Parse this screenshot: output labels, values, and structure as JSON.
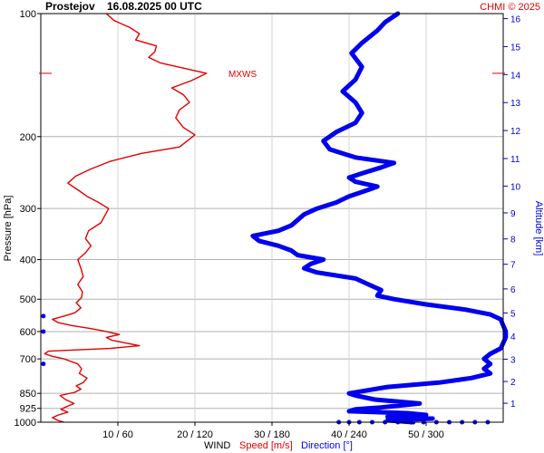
{
  "chart_data": {
    "type": "line",
    "station": "Prostejov",
    "datetime": "16.08.2025 00 UTC",
    "credit": "CHMI © 2025",
    "ylabel_left": "Pressure [hPa]",
    "ylabel_right": "Altitude [km]",
    "pressure_ticks": [
      "100",
      "200",
      "300",
      "400",
      "500",
      "600",
      "700",
      "850",
      "925",
      "1000"
    ],
    "altitude_ticks": [
      "1",
      "2",
      "3",
      "4",
      "5",
      "6",
      "7",
      "8",
      "9",
      "10",
      "11",
      "12",
      "13",
      "14",
      "15",
      "16"
    ],
    "x_ticks": [
      "10 / 60",
      "20 / 120",
      "30 / 180",
      "40 / 240",
      "50 / 300"
    ],
    "x_axis": {
      "word": "WIND",
      "speed_label": "Speed [m/s]",
      "direction_label": "Direction [°]",
      "speed_range": [
        0,
        60
      ],
      "direction_range": [
        0,
        360
      ]
    },
    "mxws_label": "MXWS",
    "mxws_pressure": 140,
    "colors": {
      "speed": "#e00000",
      "direction": "#0000ee",
      "credit": "#e00000",
      "axis_right": "#0000cc"
    },
    "series": [
      {
        "name": "Speed [m/s]",
        "color": "#e00000",
        "points": [
          [
            1000,
            3.0
          ],
          [
            990,
            2.2
          ],
          [
            975,
            1.5
          ],
          [
            960,
            2.3
          ],
          [
            945,
            3.5
          ],
          [
            930,
            2.6
          ],
          [
            915,
            3.4
          ],
          [
            900,
            4.3
          ],
          [
            880,
            3.2
          ],
          [
            860,
            2.5
          ],
          [
            845,
            4.4
          ],
          [
            830,
            5.2
          ],
          [
            815,
            4.6
          ],
          [
            800,
            5.5
          ],
          [
            780,
            6.0
          ],
          [
            760,
            5.0
          ],
          [
            740,
            5.3
          ],
          [
            720,
            4.8
          ],
          [
            700,
            3.0
          ],
          [
            690,
            1.5
          ],
          [
            680,
            0.5
          ],
          [
            670,
            1.0
          ],
          [
            660,
            9.0
          ],
          [
            650,
            12.8
          ],
          [
            640,
            11.0
          ],
          [
            630,
            9.2
          ],
          [
            620,
            8.5
          ],
          [
            610,
            10.2
          ],
          [
            600,
            8.5
          ],
          [
            590,
            6.5
          ],
          [
            580,
            4.0
          ],
          [
            570,
            2.2
          ],
          [
            560,
            1.5
          ],
          [
            550,
            3.0
          ],
          [
            540,
            4.4
          ],
          [
            525,
            5.2
          ],
          [
            510,
            4.6
          ],
          [
            495,
            5.3
          ],
          [
            480,
            5.4
          ],
          [
            460,
            4.8
          ],
          [
            440,
            5.5
          ],
          [
            420,
            5.2
          ],
          [
            400,
            4.8
          ],
          [
            385,
            5.8
          ],
          [
            370,
            6.5
          ],
          [
            355,
            5.8
          ],
          [
            340,
            6.2
          ],
          [
            325,
            7.8
          ],
          [
            310,
            8.4
          ],
          [
            300,
            8.8
          ],
          [
            290,
            7.5
          ],
          [
            280,
            6.0
          ],
          [
            270,
            4.8
          ],
          [
            260,
            3.5
          ],
          [
            250,
            4.5
          ],
          [
            240,
            6.5
          ],
          [
            230,
            9.0
          ],
          [
            220,
            13.0
          ],
          [
            212,
            18.0
          ],
          [
            205,
            19.0
          ],
          [
            198,
            20.0
          ],
          [
            190,
            18.5
          ],
          [
            180,
            17.5
          ],
          [
            172,
            18.0
          ],
          [
            165,
            19.3
          ],
          [
            158,
            18.5
          ],
          [
            152,
            17.0
          ],
          [
            146,
            19.5
          ],
          [
            140,
            21.5
          ],
          [
            136,
            18.5
          ],
          [
            132,
            15.5
          ],
          [
            128,
            14.0
          ],
          [
            124,
            14.8
          ],
          [
            120,
            15.0
          ],
          [
            116,
            12.3
          ],
          [
            112,
            12.8
          ],
          [
            108,
            11.5
          ],
          [
            104,
            9.5
          ],
          [
            100,
            8.5
          ]
        ]
      },
      {
        "name": "Direction [°]",
        "color": "#0000ee",
        "points": [
          [
            1000,
            290
          ],
          [
            990,
            270
          ],
          [
            980,
            305
          ],
          [
            970,
            270
          ],
          [
            960,
            300
          ],
          [
            950,
            285
          ],
          [
            940,
            240
          ],
          [
            930,
            245
          ],
          [
            920,
            265
          ],
          [
            910,
            280
          ],
          [
            900,
            295
          ],
          [
            880,
            260
          ],
          [
            860,
            245
          ],
          [
            850,
            240
          ],
          [
            840,
            250
          ],
          [
            820,
            270
          ],
          [
            800,
            310
          ],
          [
            780,
            335
          ],
          [
            760,
            350
          ],
          [
            740,
            345
          ],
          [
            720,
            350
          ],
          [
            700,
            345
          ],
          [
            680,
            350
          ],
          [
            660,
            358
          ],
          [
            640,
            360
          ],
          [
            620,
            362
          ],
          [
            600,
            362
          ],
          [
            580,
            360
          ],
          [
            560,
            358
          ],
          [
            545,
            350
          ],
          [
            530,
            330
          ],
          [
            515,
            300
          ],
          [
            500,
            275
          ],
          [
            490,
            262
          ],
          [
            475,
            265
          ],
          [
            460,
            255
          ],
          [
            445,
            245
          ],
          [
            430,
            215
          ],
          [
            420,
            205
          ],
          [
            410,
            210
          ],
          [
            400,
            220
          ],
          [
            390,
            200
          ],
          [
            380,
            195
          ],
          [
            370,
            185
          ],
          [
            360,
            170
          ],
          [
            350,
            165
          ],
          [
            340,
            185
          ],
          [
            330,
            195
          ],
          [
            320,
            200
          ],
          [
            310,
            205
          ],
          [
            300,
            215
          ],
          [
            290,
            230
          ],
          [
            280,
            240
          ],
          [
            270,
            255
          ],
          [
            265,
            262
          ],
          [
            258,
            245
          ],
          [
            252,
            240
          ],
          [
            245,
            252
          ],
          [
            238,
            265
          ],
          [
            232,
            275
          ],
          [
            225,
            245
          ],
          [
            215,
            225
          ],
          [
            205,
            220
          ],
          [
            195,
            230
          ],
          [
            185,
            245
          ],
          [
            175,
            250
          ],
          [
            165,
            245
          ],
          [
            155,
            235
          ],
          [
            145,
            245
          ],
          [
            135,
            250
          ],
          [
            125,
            242
          ],
          [
            118,
            250
          ],
          [
            110,
            262
          ],
          [
            105,
            268
          ],
          [
            100,
            278
          ]
        ]
      }
    ],
    "scatter_near_surface": [
      [
        1000,
        232
      ],
      [
        1000,
        240
      ],
      [
        1000,
        248
      ],
      [
        1000,
        258
      ],
      [
        1000,
        268
      ],
      [
        1000,
        278
      ],
      [
        1000,
        288
      ],
      [
        1000,
        298
      ],
      [
        1000,
        308
      ],
      [
        1000,
        318
      ],
      [
        1000,
        328
      ],
      [
        1000,
        338
      ],
      [
        1000,
        348
      ],
      [
        720,
        2
      ],
      [
        550,
        2
      ],
      [
        600,
        2
      ]
    ]
  }
}
